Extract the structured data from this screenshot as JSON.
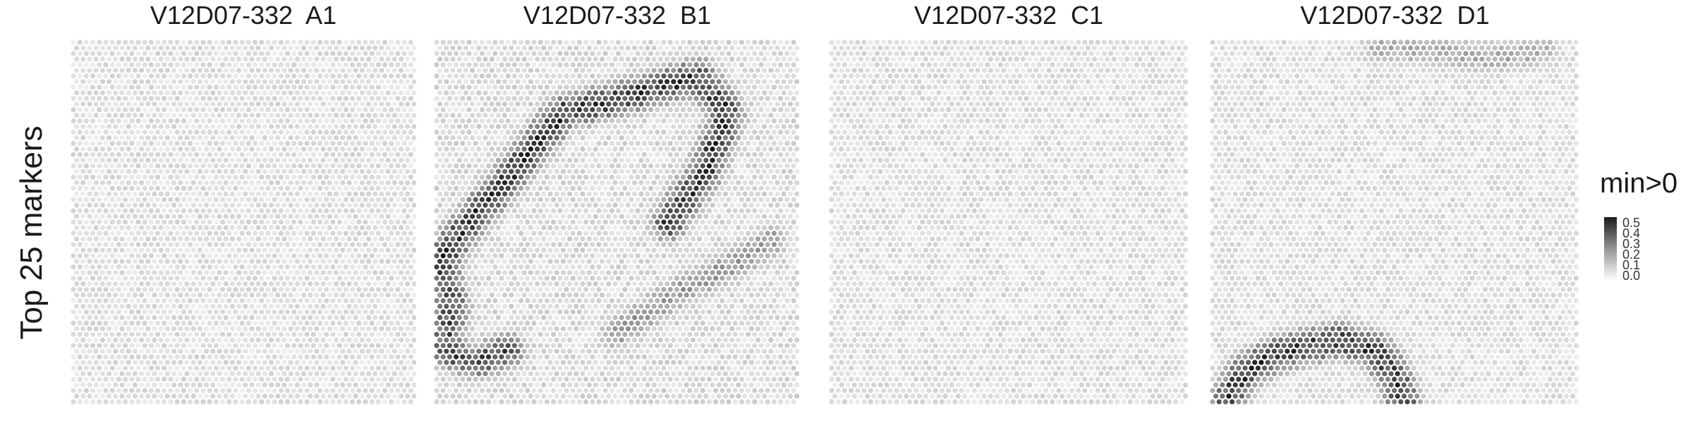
{
  "figure": {
    "row_label": "Top 25 markers",
    "panels": [
      "V12D07-332  A1",
      "V12D07-332  B1",
      "V12D07-332  C1",
      "V12D07-332  D1"
    ],
    "legend": {
      "title": "min>0",
      "ticks": [
        "0.5",
        "0.4",
        "0.3",
        "0.2",
        "0.1",
        "0.0"
      ]
    }
  },
  "chart_data": {
    "type": "heatmap",
    "description_values": "spot-level score of top 25 marker genes (min>0), grayscale 0.0 to 0.5",
    "colorscale": {
      "low": "#ffffff",
      "high": "#1a1a1a",
      "range": [
        0.0,
        0.5
      ]
    },
    "panels": [
      {
        "title": "V12D07-332  A1",
        "background_level": 0.05,
        "hotspots": []
      },
      {
        "title": "V12D07-332  B1",
        "background_level": 0.06,
        "hotspots": [
          {
            "label": "arc",
            "points": [
              [
                0.02,
                0.6
              ],
              [
                0.08,
                0.52
              ],
              [
                0.2,
                0.38
              ],
              [
                0.35,
                0.2
              ],
              [
                0.55,
                0.15
              ],
              [
                0.72,
                0.1
              ],
              [
                0.8,
                0.2
              ],
              [
                0.74,
                0.36
              ],
              [
                0.64,
                0.5
              ]
            ],
            "peak": 0.5
          },
          {
            "label": "lower-left",
            "points": [
              [
                0.02,
                0.6
              ],
              [
                0.05,
                0.72
              ],
              [
                0.03,
                0.85
              ],
              [
                0.12,
                0.88
              ],
              [
                0.2,
                0.85
              ]
            ],
            "peak": 0.45
          },
          {
            "label": "right-band",
            "points": [
              [
                0.5,
                0.8
              ],
              [
                0.65,
                0.7
              ],
              [
                0.8,
                0.62
              ],
              [
                0.92,
                0.55
              ]
            ],
            "peak": 0.25
          }
        ]
      },
      {
        "title": "V12D07-332  C1",
        "background_level": 0.05,
        "hotspots": []
      },
      {
        "title": "V12D07-332  D1",
        "background_level": 0.05,
        "hotspots": [
          {
            "label": "lower-arc",
            "points": [
              [
                0.05,
                0.98
              ],
              [
                0.1,
                0.9
              ],
              [
                0.2,
                0.85
              ],
              [
                0.35,
                0.82
              ],
              [
                0.45,
                0.85
              ],
              [
                0.5,
                0.92
              ],
              [
                0.52,
                0.98
              ]
            ],
            "peak": 0.5
          },
          {
            "label": "top-right",
            "points": [
              [
                0.45,
                0.02
              ],
              [
                0.6,
                0.03
              ],
              [
                0.75,
                0.05
              ],
              [
                0.9,
                0.03
              ]
            ],
            "peak": 0.2
          }
        ]
      }
    ]
  }
}
